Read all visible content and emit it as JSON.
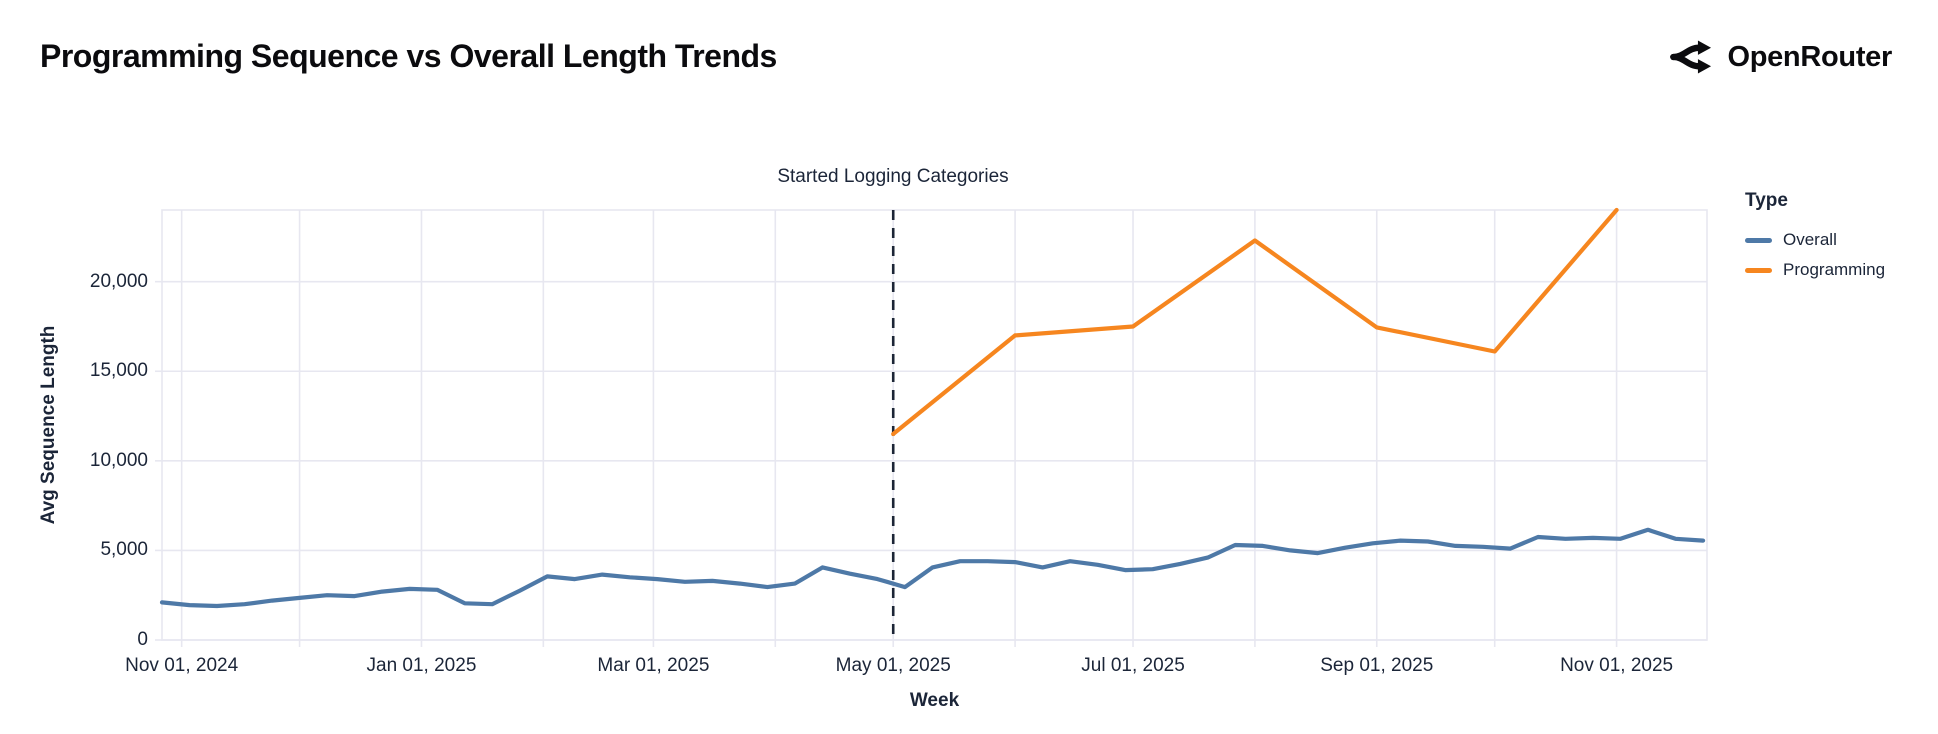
{
  "header": {
    "title": "Programming Sequence vs Overall Length Trends",
    "brand": "OpenRouter"
  },
  "colors": {
    "overall_line": "#4e79a7",
    "programming_line": "#f6861f",
    "grid": "#e7e7f0",
    "annotation_rule": "#1c2536",
    "text_dark": "#1b2538",
    "brand_black": "#0b0b0e"
  },
  "chart_data": {
    "type": "line",
    "title": "Programming Sequence vs Overall Length Trends",
    "xlabel": "Week",
    "ylabel": "Avg Sequence Length",
    "ylim": [
      0,
      24000
    ],
    "grid": true,
    "x_domain": [
      "2024-10-27",
      "2025-11-24"
    ],
    "y_ticks": [
      {
        "value": 0,
        "label": "0"
      },
      {
        "value": 5000,
        "label": "5,000"
      },
      {
        "value": 10000,
        "label": "10,000"
      },
      {
        "value": 15000,
        "label": "15,000"
      },
      {
        "value": 20000,
        "label": "20,000"
      }
    ],
    "x_grid_months": [
      "2024-11-01",
      "2024-12-01",
      "2025-01-01",
      "2025-02-01",
      "2025-03-01",
      "2025-04-01",
      "2025-05-01",
      "2025-06-01",
      "2025-07-01",
      "2025-08-01",
      "2025-09-01",
      "2025-10-01",
      "2025-11-01"
    ],
    "x_ticks": [
      {
        "date": "2024-11-01",
        "label": "Nov 01, 2024"
      },
      {
        "date": "2025-01-01",
        "label": "Jan 01, 2025"
      },
      {
        "date": "2025-03-01",
        "label": "Mar 01, 2025"
      },
      {
        "date": "2025-05-01",
        "label": "May 01, 2025"
      },
      {
        "date": "2025-07-01",
        "label": "Jul 01, 2025"
      },
      {
        "date": "2025-09-01",
        "label": "Sep 01, 2025"
      },
      {
        "date": "2025-11-01",
        "label": "Nov 01, 2025"
      }
    ],
    "annotation": {
      "label": "Started Logging Categories",
      "date": "2025-05-01"
    },
    "legend": {
      "title": "Type",
      "position": "right",
      "entries": [
        {
          "label": "Overall",
          "color": "#4e79a7"
        },
        {
          "label": "Programming",
          "color": "#f6861f"
        }
      ]
    },
    "series": [
      {
        "name": "Overall",
        "color": "#4e79a7",
        "points": [
          [
            "2024-10-27",
            2100
          ],
          [
            "2024-11-03",
            1950
          ],
          [
            "2024-11-10",
            1900
          ],
          [
            "2024-11-17",
            2000
          ],
          [
            "2024-11-24",
            2200
          ],
          [
            "2024-12-01",
            2350
          ],
          [
            "2024-12-08",
            2500
          ],
          [
            "2024-12-15",
            2450
          ],
          [
            "2024-12-22",
            2700
          ],
          [
            "2024-12-29",
            2850
          ],
          [
            "2025-01-05",
            2800
          ],
          [
            "2025-01-12",
            2050
          ],
          [
            "2025-01-19",
            2000
          ],
          [
            "2025-01-26",
            2750
          ],
          [
            "2025-02-02",
            3550
          ],
          [
            "2025-02-09",
            3400
          ],
          [
            "2025-02-16",
            3650
          ],
          [
            "2025-02-23",
            3500
          ],
          [
            "2025-03-02",
            3400
          ],
          [
            "2025-03-09",
            3250
          ],
          [
            "2025-03-16",
            3300
          ],
          [
            "2025-03-23",
            3150
          ],
          [
            "2025-03-30",
            2950
          ],
          [
            "2025-04-06",
            3150
          ],
          [
            "2025-04-13",
            4050
          ],
          [
            "2025-04-20",
            3700
          ],
          [
            "2025-04-27",
            3400
          ],
          [
            "2025-05-04",
            2950
          ],
          [
            "2025-05-11",
            4050
          ],
          [
            "2025-05-18",
            4400
          ],
          [
            "2025-05-25",
            4400
          ],
          [
            "2025-06-01",
            4350
          ],
          [
            "2025-06-08",
            4050
          ],
          [
            "2025-06-15",
            4400
          ],
          [
            "2025-06-22",
            4200
          ],
          [
            "2025-06-29",
            3900
          ],
          [
            "2025-07-06",
            3950
          ],
          [
            "2025-07-13",
            4250
          ],
          [
            "2025-07-20",
            4600
          ],
          [
            "2025-07-27",
            5300
          ],
          [
            "2025-08-03",
            5250
          ],
          [
            "2025-08-10",
            5000
          ],
          [
            "2025-08-17",
            4850
          ],
          [
            "2025-08-24",
            5150
          ],
          [
            "2025-08-31",
            5400
          ],
          [
            "2025-09-07",
            5550
          ],
          [
            "2025-09-14",
            5500
          ],
          [
            "2025-09-21",
            5250
          ],
          [
            "2025-09-28",
            5200
          ],
          [
            "2025-10-05",
            5100
          ],
          [
            "2025-10-12",
            5750
          ],
          [
            "2025-10-19",
            5650
          ],
          [
            "2025-10-26",
            5700
          ],
          [
            "2025-11-02",
            5650
          ],
          [
            "2025-11-09",
            6150
          ],
          [
            "2025-11-16",
            5650
          ],
          [
            "2025-11-23",
            5550
          ]
        ]
      },
      {
        "name": "Programming",
        "color": "#f6861f",
        "points": [
          [
            "2025-05-01",
            11500
          ],
          [
            "2025-06-01",
            17000
          ],
          [
            "2025-07-01",
            17500
          ],
          [
            "2025-08-01",
            22300
          ],
          [
            "2025-09-01",
            17450
          ],
          [
            "2025-10-01",
            16100
          ],
          [
            "2025-11-01",
            24000
          ]
        ]
      }
    ]
  }
}
